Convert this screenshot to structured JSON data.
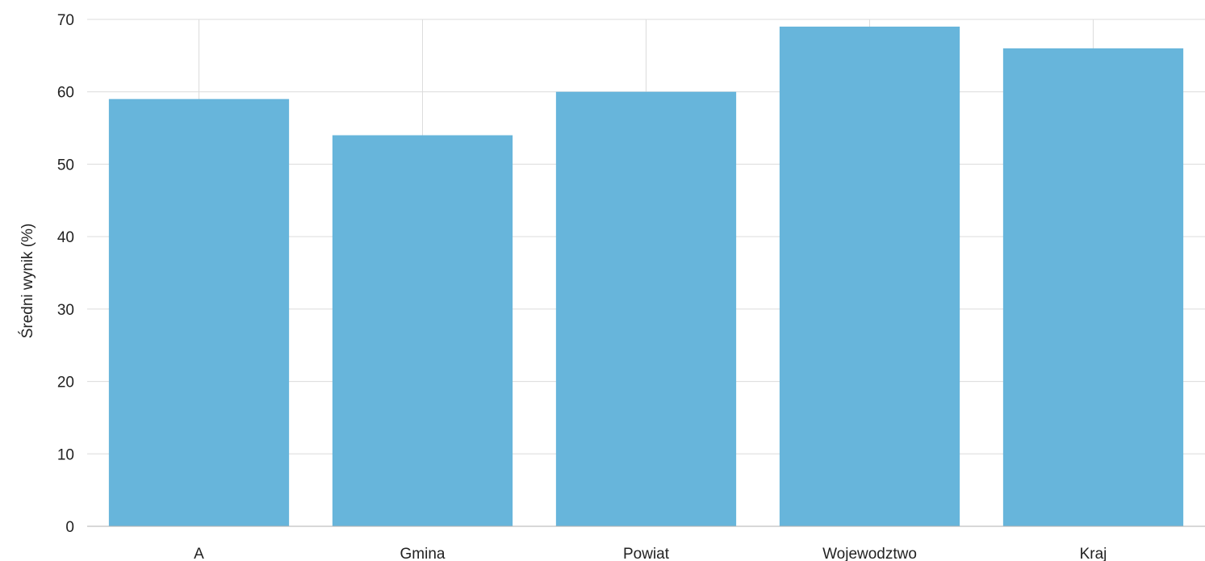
{
  "chart_data": {
    "type": "bar",
    "title": "",
    "xlabel": "",
    "ylabel": "Średni wynik (%)",
    "categories": [
      "A",
      "Gmina",
      "Powiat",
      "Wojewodztwo",
      "Kraj"
    ],
    "values": [
      59,
      54,
      60,
      69,
      66
    ],
    "ylim": [
      0,
      70
    ],
    "yticks": [
      0,
      10,
      20,
      30,
      40,
      50,
      60,
      70
    ],
    "grid": true,
    "bar_color": "#67b5db",
    "grid_color": "#dcdcdc"
  }
}
